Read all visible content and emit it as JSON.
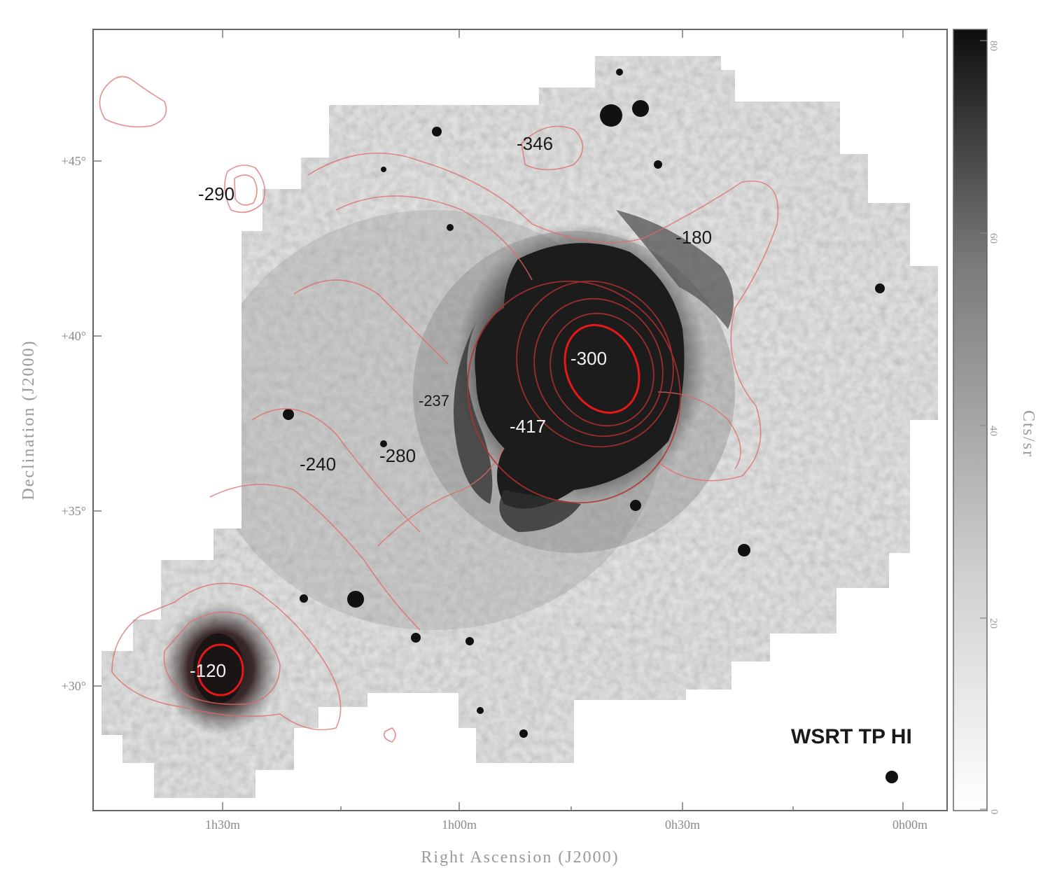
{
  "panel_label": "WSRT TP HI",
  "x_axis": {
    "label": "Right Ascension (J2000)",
    "ticks": [
      "1h30m",
      "1h00m",
      "0h30m",
      "0h00m"
    ]
  },
  "y_axis": {
    "label": "Declination (J2000)",
    "ticks": [
      "+45°",
      "+40°",
      "+35°",
      "+30°"
    ]
  },
  "colorbar": {
    "label": "Cts/sr",
    "ticks": [
      "80",
      "60",
      "40",
      "20",
      "0"
    ]
  },
  "velocity_labels": {
    "v346": "-346",
    "v290": "-290",
    "v180": "-180",
    "v300": "-300",
    "v237": "-237",
    "v417": "-417",
    "v240": "-240",
    "v280": "-280",
    "v120": "-120"
  },
  "colors": {
    "contour": "#e06060",
    "contour_strong": "#e81818",
    "map_light": "#c4c4c4",
    "map_dark": "#1c1c1c"
  }
}
